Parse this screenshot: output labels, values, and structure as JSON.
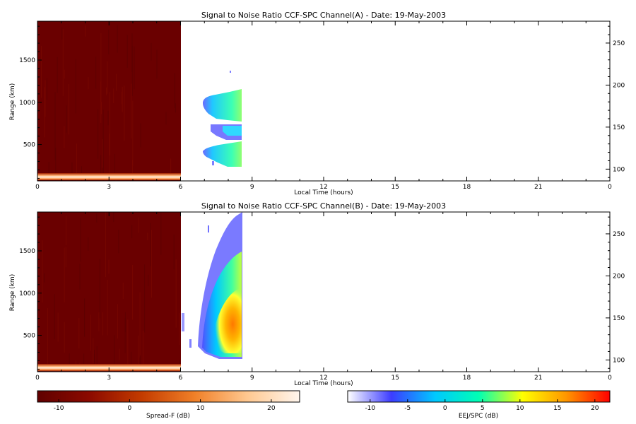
{
  "chart_data": [
    {
      "type": "heatmap",
      "title": "Signal to Noise Ratio CCF-SPC Channel(A) - Date: 19-May-2003",
      "xlabel": "Local Time (hours)",
      "ylabel": "Range (km)",
      "xlim": [
        0,
        24
      ],
      "ylim": [
        70,
        1960
      ],
      "x_ticks": [
        "0",
        "3",
        "6",
        "9",
        "12",
        "15",
        "18",
        "21",
        "0"
      ],
      "y_ticks": [
        500,
        1000,
        1500
      ],
      "y_tick_labels": [
        "500",
        "1000",
        "1500"
      ],
      "right_axis_ticks": [
        100,
        150,
        200,
        250
      ],
      "right_axis_tick_labels": [
        "100",
        "150",
        "200",
        "250"
      ],
      "right_axis_range": [
        86,
        276
      ],
      "regions": [
        {
          "name": "Spread-F",
          "x_range": [
            0,
            6
          ],
          "y_range": [
            70,
            1960
          ],
          "value_db": -12
        },
        {
          "name": "Spread-F",
          "x_range": [
            0,
            6
          ],
          "y_range": [
            90,
            125
          ],
          "value_db": 20
        },
        {
          "name": "EEJ/SPC",
          "x_range": [
            6.9,
            8.5
          ],
          "y_range": [
            850,
            1150
          ],
          "value_db": 4
        },
        {
          "name": "EEJ/SPC",
          "x_range": [
            7.2,
            8.5
          ],
          "y_range": [
            600,
            800
          ],
          "value_db": -4
        },
        {
          "name": "EEJ/SPC",
          "x_range": [
            6.9,
            8.5
          ],
          "y_range": [
            230,
            470
          ],
          "value_db": 4
        }
      ]
    },
    {
      "type": "heatmap",
      "title": "Signal to Noise Ratio CCF-SPC Channel(B) - Date: 19-May-2003",
      "xlabel": "Local Time (hours)",
      "ylabel": "Range (km)",
      "xlim": [
        0,
        24
      ],
      "ylim": [
        70,
        1960
      ],
      "x_ticks": [
        "0",
        "3",
        "6",
        "9",
        "12",
        "15",
        "18",
        "21",
        "0"
      ],
      "y_ticks": [
        500,
        1000,
        1500
      ],
      "y_tick_labels": [
        "500",
        "1000",
        "1500"
      ],
      "right_axis_ticks": [
        100,
        150,
        200,
        250
      ],
      "right_axis_tick_labels": [
        "100",
        "150",
        "200",
        "250"
      ],
      "right_axis_range": [
        86,
        276
      ],
      "regions": [
        {
          "name": "Spread-F",
          "x_range": [
            0,
            6
          ],
          "y_range": [
            70,
            1960
          ],
          "value_db": -12
        },
        {
          "name": "Spread-F",
          "x_range": [
            0,
            6
          ],
          "y_range": [
            90,
            125
          ],
          "value_db": 20
        },
        {
          "name": "EEJ/SPC",
          "x_range": [
            6.9,
            8.5
          ],
          "y_range": [
            200,
            1950
          ],
          "value_db": -8
        },
        {
          "name": "EEJ/SPC",
          "x_range": [
            7.0,
            8.5
          ],
          "y_range": [
            250,
            1300
          ],
          "value_db": 2
        },
        {
          "name": "EEJ/SPC",
          "x_range": [
            7.4,
            8.5
          ],
          "y_range": [
            300,
            800
          ],
          "value_db": 10
        },
        {
          "name": "EEJ/SPC",
          "x_range": [
            7.8,
            8.5
          ],
          "y_range": [
            350,
            650
          ],
          "value_db": 16
        }
      ]
    }
  ],
  "colorbars": [
    {
      "label": "Spread-F (dB)",
      "range": [
        -13,
        24
      ],
      "ticks": [
        -10,
        0,
        10,
        20
      ],
      "tick_labels": [
        "-10",
        "0",
        "10",
        "20"
      ],
      "colors": [
        "#600000",
        "#8c0a00",
        "#c43c00",
        "#f08028",
        "#ffc890",
        "#fff6ee"
      ]
    },
    {
      "label": "EEJ/SPC (dB)",
      "range": [
        -13,
        22
      ],
      "ticks": [
        -10,
        -5,
        0,
        5,
        10,
        15,
        20
      ],
      "tick_labels": [
        "-10",
        "-5",
        "0",
        "5",
        "10",
        "15",
        "20"
      ],
      "colors": [
        "#ffffff",
        "#3c3cff",
        "#00c8ff",
        "#00ffb4",
        "#ffff00",
        "#ff9600",
        "#ff0000"
      ]
    }
  ]
}
